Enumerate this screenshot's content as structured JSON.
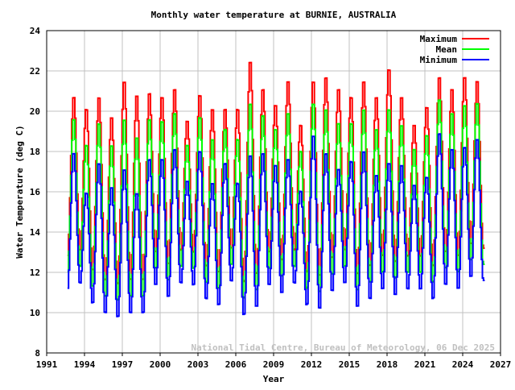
{
  "chart_data": {
    "type": "line",
    "title": "Monthly water temperature at BURNIE, AUSTRALIA",
    "xlabel": "Year",
    "ylabel": "Water Temperature (deg C)",
    "xlim": [
      1991,
      2027
    ],
    "ylim": [
      8,
      24
    ],
    "x_ticks": [
      "1991",
      "1994",
      "1997",
      "2000",
      "2003",
      "2006",
      "2009",
      "2012",
      "2015",
      "2018",
      "2021",
      "2024",
      "2027"
    ],
    "y_ticks": [
      "8",
      "10",
      "12",
      "14",
      "16",
      "18",
      "20",
      "22",
      "24"
    ],
    "grid": true,
    "legend_position": "top-right",
    "watermark": "National Tidal Centre, Bureau of Meteorology, 06 Dec 2025",
    "data_range": {
      "start": 1992.65,
      "end": 2025.75
    },
    "peak_years": [
      1993,
      1994,
      1995,
      1996,
      1997,
      1998,
      1999,
      2000,
      2001,
      2002,
      2003,
      2004,
      2005,
      2006,
      2007,
      2008,
      2009,
      2010,
      2011,
      2012,
      2013,
      2014,
      2015,
      2016,
      2017,
      2018,
      2019,
      2020,
      2021,
      2022,
      2023,
      2024,
      2025
    ],
    "trough_years": [
      1992,
      1993,
      1994,
      1995,
      1996,
      1997,
      1998,
      1999,
      2000,
      2001,
      2002,
      2003,
      2004,
      2005,
      2006,
      2007,
      2008,
      2009,
      2010,
      2011,
      2012,
      2013,
      2014,
      2015,
      2016,
      2017,
      2018,
      2019,
      2020,
      2021,
      2022,
      2023,
      2024,
      2025
    ],
    "series": [
      {
        "name": "Maximum",
        "color": "#ff0000",
        "summer_peaks": [
          20.8,
          20.2,
          20.8,
          19.8,
          21.6,
          20.9,
          21.0,
          20.8,
          21.2,
          19.6,
          20.9,
          20.2,
          20.2,
          20.2,
          22.6,
          21.2,
          20.4,
          21.6,
          19.4,
          21.6,
          21.8,
          21.2,
          20.8,
          21.6,
          20.8,
          22.2,
          20.8,
          19.4,
          20.3,
          21.8,
          21.2,
          21.8,
          21.6
        ],
        "winter_troughs": [
          12.7,
          13.0,
          12.0,
          11.5,
          11.3,
          11.5,
          11.5,
          12.9,
          12.3,
          13.0,
          12.9,
          12.2,
          11.9,
          13.1,
          11.4,
          11.8,
          12.9,
          12.5,
          13.0,
          11.9,
          11.7,
          12.6,
          13.0,
          11.8,
          12.2,
          12.7,
          12.4,
          12.7,
          12.7,
          12.2,
          12.9,
          12.7,
          13.3,
          13.2
        ]
      },
      {
        "name": "Mean",
        "color": "#00ff00",
        "summer_peaks": [
          19.7,
          18.4,
          19.5,
          18.4,
          19.7,
          18.8,
          19.7,
          19.6,
          20.0,
          18.4,
          19.8,
          18.7,
          19.2,
          18.7,
          20.5,
          19.9,
          19.2,
          20.0,
          18.1,
          20.5,
          20.2,
          19.5,
          19.5,
          20.2,
          19.2,
          20.2,
          19.4,
          18.2,
          18.9,
          20.7,
          20.0,
          20.4,
          20.5
        ],
        "winter_troughs": [
          11.9,
          12.2,
          11.2,
          10.7,
          10.5,
          10.7,
          10.7,
          12.1,
          11.5,
          12.2,
          12.1,
          11.4,
          11.1,
          12.3,
          10.6,
          11.0,
          12.1,
          11.7,
          12.2,
          11.1,
          10.9,
          11.8,
          12.2,
          11.0,
          11.4,
          11.9,
          11.6,
          11.9,
          11.9,
          11.4,
          12.1,
          11.9,
          12.5,
          12.4
        ]
      },
      {
        "name": "Minimum",
        "color": "#0000ff",
        "summer_peaks": [
          18.0,
          16.0,
          17.5,
          16.3,
          17.2,
          16.0,
          17.7,
          17.7,
          18.2,
          16.6,
          18.1,
          16.5,
          17.5,
          16.5,
          17.9,
          18.0,
          17.4,
          17.7,
          16.1,
          18.9,
          18.0,
          17.2,
          17.6,
          18.1,
          16.9,
          17.5,
          17.4,
          16.4,
          16.8,
          19.0,
          18.2,
          18.3,
          18.7
        ],
        "winter_troughs": [
          11.1,
          11.4,
          10.4,
          9.9,
          9.7,
          9.9,
          9.9,
          11.3,
          10.7,
          11.4,
          11.3,
          10.6,
          10.3,
          11.5,
          9.8,
          10.2,
          11.3,
          10.9,
          11.4,
          10.3,
          10.1,
          11.0,
          11.4,
          10.2,
          10.6,
          11.1,
          10.8,
          11.1,
          11.1,
          10.6,
          11.3,
          11.1,
          11.7,
          11.6
        ]
      }
    ]
  }
}
